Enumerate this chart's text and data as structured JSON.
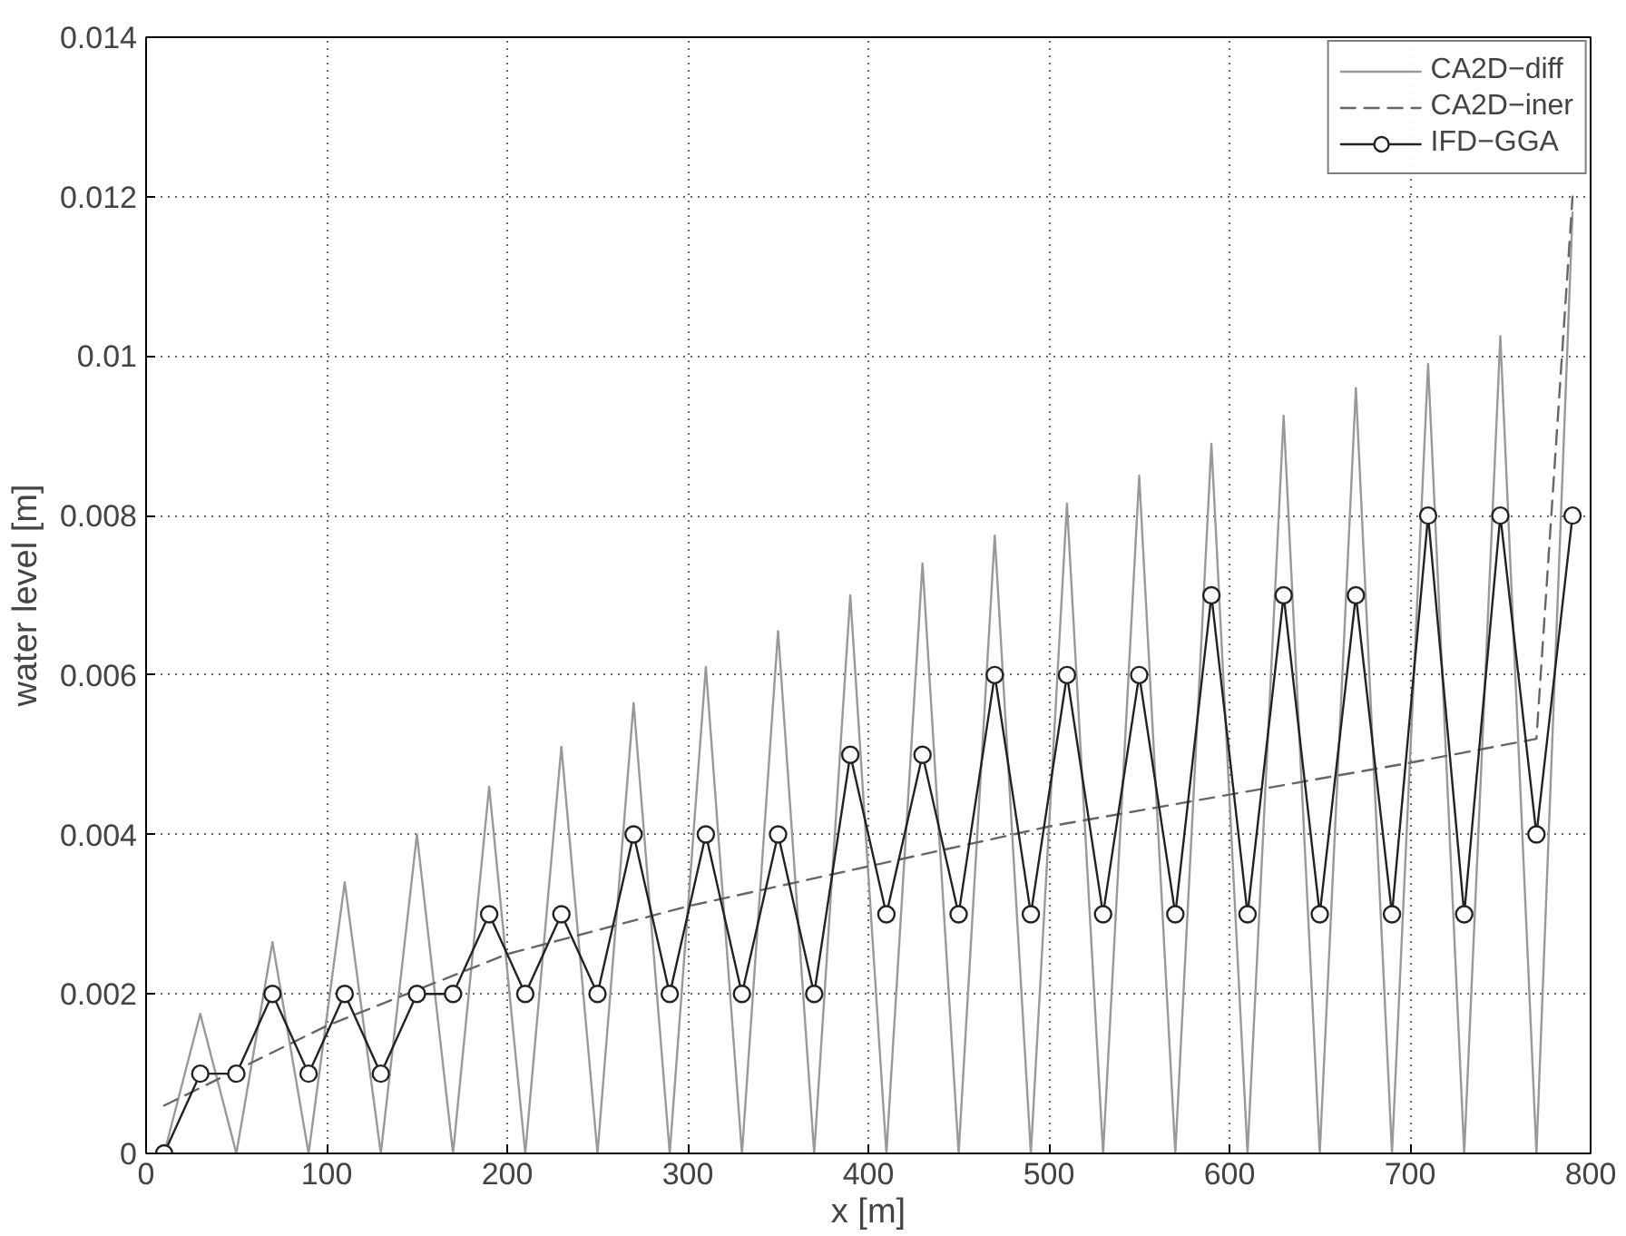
{
  "chart_data": {
    "type": "line",
    "xlabel": "x [m]",
    "ylabel": "water level [m]",
    "xlim": [
      0,
      800
    ],
    "ylim": [
      0,
      0.014
    ],
    "xticks": [
      0,
      100,
      200,
      300,
      400,
      500,
      600,
      700,
      800
    ],
    "yticks": [
      0,
      0.002,
      0.004,
      0.006,
      0.008,
      0.01,
      0.012,
      0.014
    ],
    "grid": true,
    "legend": "top right",
    "series": [
      {
        "name": "CA2D−diff",
        "color": "#999999",
        "line_style": "solid",
        "marker": "none",
        "x": [
          10,
          30,
          50,
          70,
          90,
          110,
          130,
          150,
          170,
          190,
          210,
          230,
          250,
          270,
          290,
          310,
          330,
          350,
          370,
          390,
          410,
          430,
          450,
          470,
          490,
          510,
          530,
          550,
          570,
          590,
          610,
          630,
          650,
          670,
          690,
          710,
          730,
          750,
          770,
          790
        ],
        "values": [
          0,
          0.00175,
          0,
          0.00265,
          0,
          0.0034,
          0,
          0.004,
          0,
          0.0046,
          0,
          0.0051,
          0,
          0.00565,
          0,
          0.0061,
          0,
          0.00655,
          0,
          0.007,
          0,
          0.0074,
          0,
          0.00775,
          0,
          0.00815,
          0,
          0.0085,
          0,
          0.0089,
          0,
          0.00925,
          0,
          0.0096,
          0,
          0.0099,
          0,
          0.01025,
          0,
          0.0118
        ]
      },
      {
        "name": "CA2D−iner",
        "color": "#666666",
        "line_style": "dashed",
        "marker": "none",
        "x": [
          10,
          100,
          200,
          300,
          400,
          500,
          600,
          700,
          770,
          790
        ],
        "values": [
          0.0006,
          0.0016,
          0.0025,
          0.0031,
          0.0036,
          0.0041,
          0.0045,
          0.0049,
          0.0052,
          0.012
        ]
      },
      {
        "name": "IFD−GGA",
        "color": "#222222",
        "line_style": "solid",
        "marker": "circle",
        "x": [
          10,
          30,
          50,
          70,
          90,
          110,
          130,
          150,
          170,
          190,
          210,
          230,
          250,
          270,
          290,
          310,
          330,
          350,
          370,
          390,
          410,
          430,
          450,
          470,
          490,
          510,
          530,
          550,
          570,
          590,
          610,
          630,
          650,
          670,
          690,
          710,
          730,
          750,
          770,
          790
        ],
        "values": [
          0,
          0.001,
          0.001,
          0.002,
          0.001,
          0.002,
          0.001,
          0.002,
          0.002,
          0.003,
          0.002,
          0.003,
          0.002,
          0.004,
          0.002,
          0.004,
          0.002,
          0.004,
          0.002,
          0.005,
          0.003,
          0.005,
          0.003,
          0.006,
          0.003,
          0.006,
          0.003,
          0.006,
          0.003,
          0.007,
          0.003,
          0.007,
          0.003,
          0.007,
          0.003,
          0.008,
          0.003,
          0.008,
          0.004,
          0.008
        ]
      }
    ]
  }
}
